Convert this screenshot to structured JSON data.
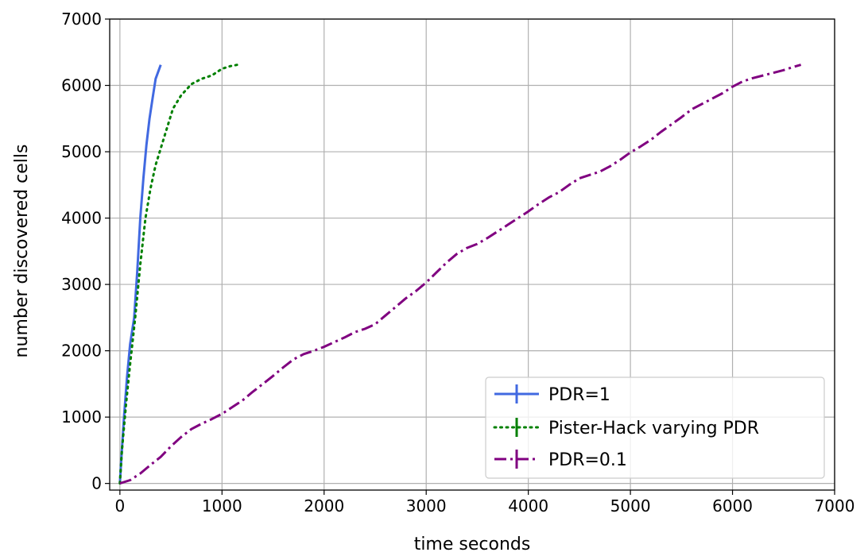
{
  "chart_data": {
    "type": "line",
    "title": "",
    "xlabel": "time seconds",
    "ylabel": "number discovered cells",
    "xlim": [
      -100,
      7000
    ],
    "ylim": [
      -100,
      7000
    ],
    "xticks": [
      0,
      1000,
      2000,
      3000,
      4000,
      5000,
      6000,
      7000
    ],
    "yticks": [
      0,
      1000,
      2000,
      3000,
      4000,
      5000,
      6000,
      7000
    ],
    "xtick_labels": [
      "0",
      "1000",
      "2000",
      "3000",
      "4000",
      "5000",
      "6000",
      "7000"
    ],
    "ytick_labels": [
      "0",
      "1000",
      "2000",
      "3000",
      "4000",
      "5000",
      "6000",
      "7000"
    ],
    "grid": true,
    "legend_position": "bottom-right",
    "series": [
      {
        "name": "PDR=1",
        "color": "#4169e1",
        "dash": "solid",
        "x": [
          0,
          15,
          40,
          70,
          100,
          140,
          170,
          200,
          230,
          260,
          290,
          320,
          350,
          400
        ],
        "y": [
          0,
          400,
          1000,
          1600,
          2100,
          2500,
          3200,
          4000,
          4600,
          5100,
          5500,
          5800,
          6100,
          6310
        ]
      },
      {
        "name": "Pister-Hack varying PDR",
        "color": "#008000",
        "dash": "dotted",
        "x": [
          0,
          20,
          60,
          100,
          150,
          200,
          250,
          300,
          350,
          400,
          450,
          520,
          600,
          700,
          800,
          900,
          1000,
          1080,
          1150
        ],
        "y": [
          0,
          500,
          1200,
          1800,
          2500,
          3300,
          4000,
          4450,
          4800,
          5050,
          5300,
          5650,
          5850,
          6020,
          6100,
          6150,
          6250,
          6290,
          6310
        ]
      },
      {
        "name": "PDR=0.1",
        "color": "#800080",
        "dash": "dashdot",
        "x": [
          0,
          100,
          200,
          300,
          400,
          500,
          600,
          700,
          800,
          900,
          1000,
          1100,
          1200,
          1300,
          1400,
          1500,
          1600,
          1700,
          1800,
          1900,
          2000,
          2100,
          2200,
          2300,
          2400,
          2500,
          2600,
          2700,
          2800,
          2900,
          3000,
          3100,
          3200,
          3300,
          3400,
          3500,
          3600,
          3700,
          3800,
          3900,
          4000,
          4100,
          4200,
          4300,
          4400,
          4500,
          4600,
          4700,
          4800,
          4900,
          5000,
          5100,
          5200,
          5300,
          5400,
          5500,
          5600,
          5700,
          5800,
          5900,
          6000,
          6100,
          6200,
          6300,
          6400,
          6500,
          6600,
          6670
        ],
        "y": [
          0,
          50,
          150,
          280,
          400,
          560,
          700,
          820,
          900,
          970,
          1050,
          1150,
          1250,
          1380,
          1500,
          1620,
          1750,
          1870,
          1950,
          2000,
          2060,
          2130,
          2200,
          2280,
          2330,
          2400,
          2530,
          2660,
          2790,
          2900,
          3030,
          3180,
          3330,
          3460,
          3550,
          3610,
          3700,
          3800,
          3900,
          4000,
          4100,
          4210,
          4310,
          4390,
          4500,
          4600,
          4650,
          4700,
          4780,
          4880,
          4990,
          5080,
          5180,
          5300,
          5410,
          5520,
          5640,
          5720,
          5800,
          5880,
          5980,
          6060,
          6110,
          6150,
          6190,
          6230,
          6280,
          6310
        ]
      }
    ]
  }
}
